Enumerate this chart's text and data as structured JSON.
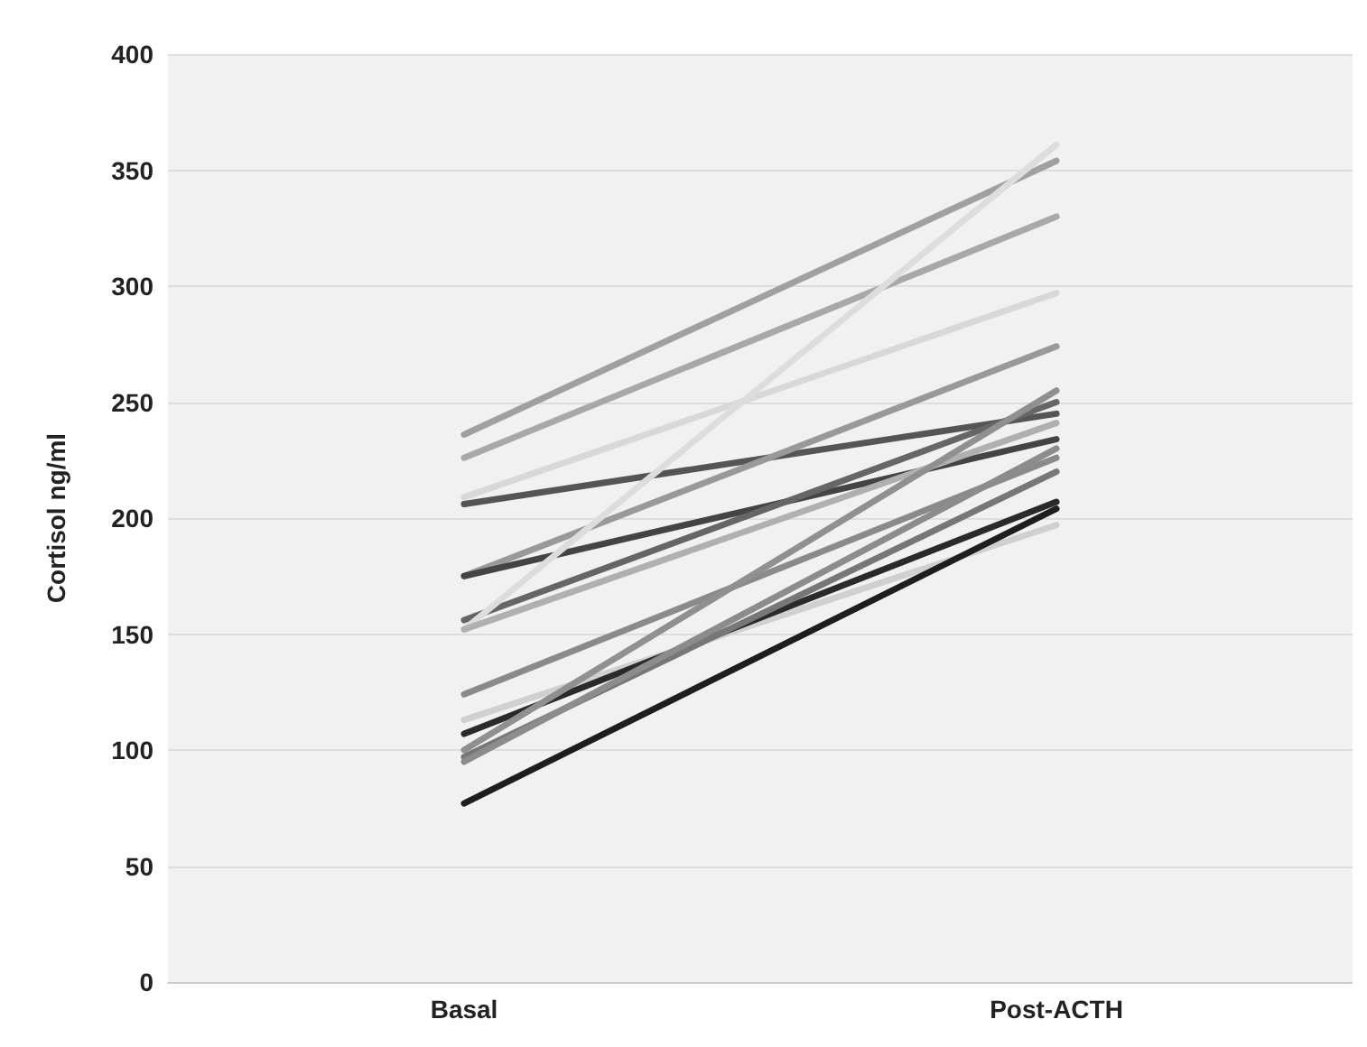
{
  "chart_data": {
    "type": "line",
    "ylabel": "Cortisol ng/ml",
    "categories": [
      "Basal",
      "Post-ACTH"
    ],
    "ylim": [
      0,
      400
    ],
    "yticks": [
      0,
      50,
      100,
      150,
      200,
      250,
      300,
      350,
      400
    ],
    "grid": "y",
    "marker": "none",
    "line_style": "solid",
    "series": [
      {
        "color": "#a0a0a0",
        "values": [
          236,
          354
        ]
      },
      {
        "color": "#a8a8a8",
        "values": [
          226,
          330
        ]
      },
      {
        "color": "#d8d8d8",
        "values": [
          209,
          297
        ]
      },
      {
        "color": "#555555",
        "values": [
          206,
          245
        ]
      },
      {
        "color": "#999999",
        "values": [
          175,
          274
        ]
      },
      {
        "color": "#444444",
        "values": [
          175,
          234
        ]
      },
      {
        "color": "#666666",
        "values": [
          156,
          250
        ]
      },
      {
        "color": "#dddddd",
        "values": [
          152,
          361
        ]
      },
      {
        "color": "#b0b0b0",
        "values": [
          152,
          241
        ]
      },
      {
        "color": "#8a8a8a",
        "values": [
          124,
          226
        ]
      },
      {
        "color": "#d0d0d0",
        "values": [
          113,
          197
        ]
      },
      {
        "color": "#2a2a2a",
        "values": [
          107,
          207
        ]
      },
      {
        "color": "#909090",
        "values": [
          100,
          255
        ]
      },
      {
        "color": "#777777",
        "values": [
          97,
          220
        ]
      },
      {
        "color": "#8c8c8c",
        "values": [
          95,
          230
        ]
      },
      {
        "color": "#1e1e1e",
        "values": [
          77,
          204
        ]
      }
    ]
  }
}
